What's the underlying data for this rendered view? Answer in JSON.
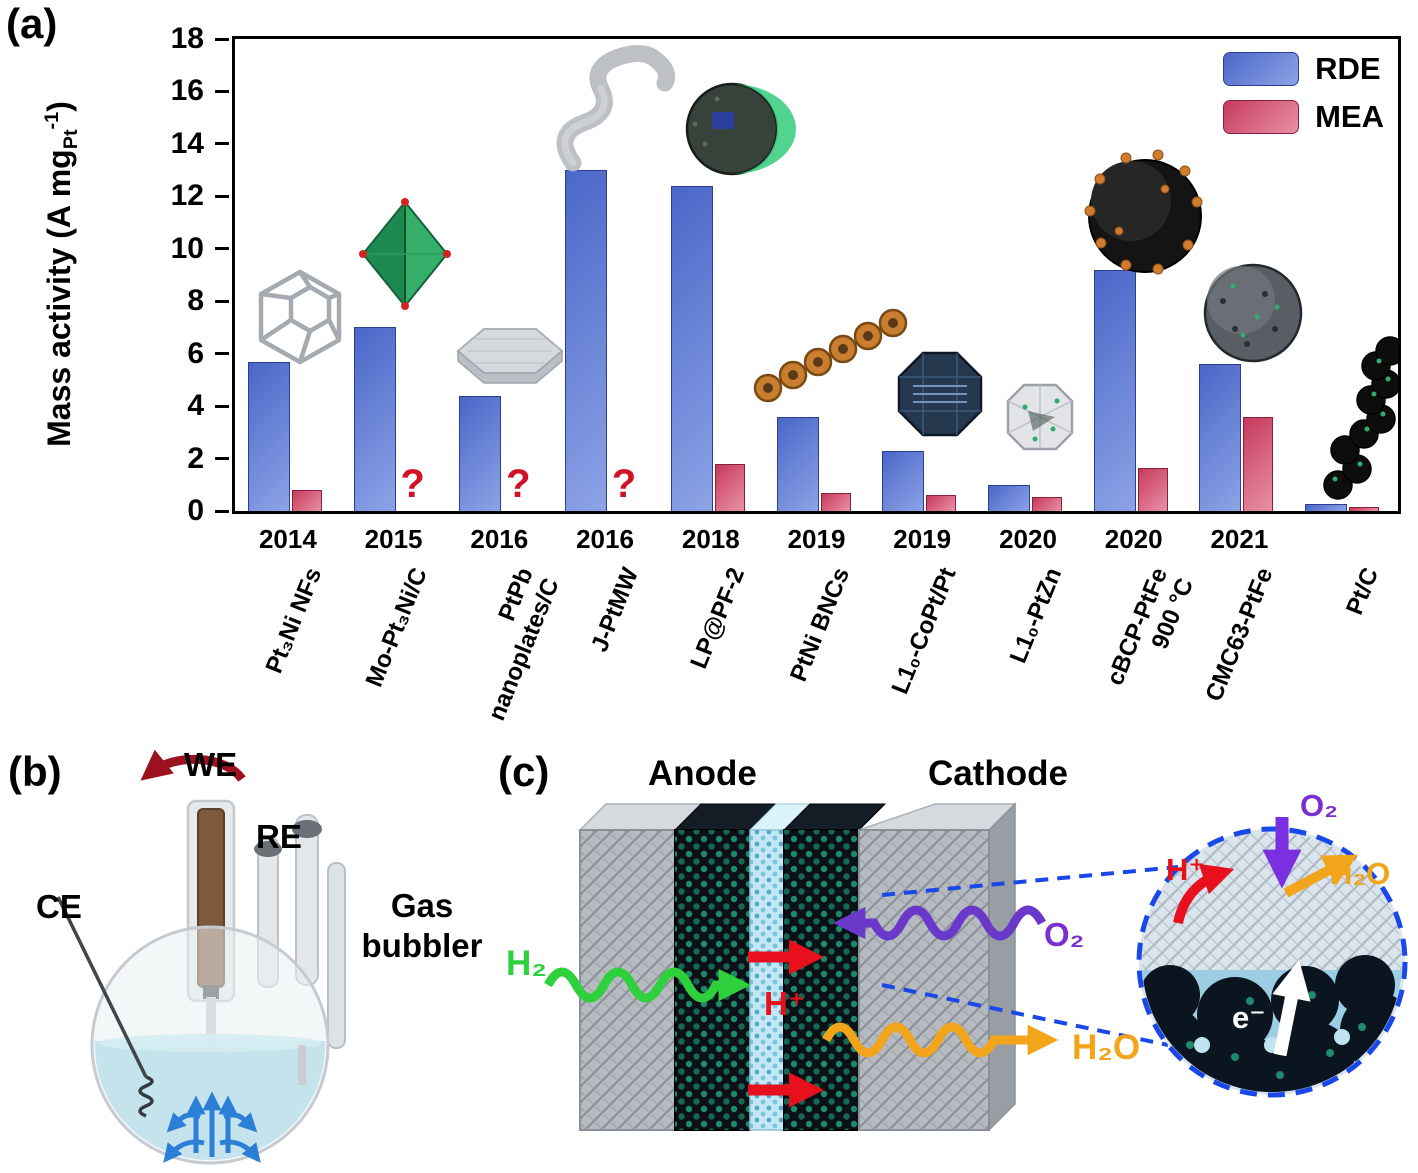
{
  "panels": {
    "a": "(a)",
    "b": "(b)",
    "c": "(c)"
  },
  "chart_data": {
    "type": "bar",
    "title": "",
    "ylabel": "Mass activity (A mg_Pt^-1)",
    "ylabel_parts": {
      "prefix": "Mass activity (A mg",
      "sub": "Pt",
      "sup": "-1",
      "suffix": ")"
    },
    "ylim": [
      0,
      18
    ],
    "y_ticks": [
      0,
      2,
      4,
      6,
      8,
      10,
      12,
      14,
      16,
      18
    ],
    "grid": false,
    "legend_position": "top-right",
    "missing_marker": "?",
    "missing_color": "#d01126",
    "categories": [
      {
        "year": "2014",
        "name": "Pt₃Ni NFs"
      },
      {
        "year": "2015",
        "name": "Mo-Pt₃Ni/C"
      },
      {
        "year": "2016",
        "name": "PtPb\nnanoplates/C"
      },
      {
        "year": "2016",
        "name": "J-PtMW"
      },
      {
        "year": "2018",
        "name": "LP@PF-2"
      },
      {
        "year": "2019",
        "name": "PtNi BNCs"
      },
      {
        "year": "2019",
        "name": "L1₀-CoPt/Pt"
      },
      {
        "year": "2020",
        "name": "L1₀-PtZn"
      },
      {
        "year": "2020",
        "name": "cBCP-PtFe\n900 °C"
      },
      {
        "year": "2021",
        "name": "CMC63-PtFe"
      },
      {
        "year": "",
        "name": "Pt/C"
      }
    ],
    "series": [
      {
        "name": "RDE",
        "color": "#4a67c8",
        "color_light": "#8ca3e6",
        "color_dark": "#2c3f8f",
        "values": [
          5.7,
          7.0,
          4.4,
          13.0,
          12.4,
          3.6,
          2.3,
          1.0,
          9.2,
          5.6,
          0.25
        ]
      },
      {
        "name": "MEA",
        "color": "#c73a5c",
        "color_light": "#e891a6",
        "color_dark": "#8a1f3c",
        "values": [
          0.8,
          null,
          null,
          null,
          1.8,
          0.7,
          0.6,
          0.55,
          1.65,
          3.6,
          0.15
        ]
      }
    ]
  },
  "panel_b": {
    "we_label": "WE",
    "re_label": "RE",
    "ce_label": "CE",
    "gas_bubbler_label": "Gas\nbubbler"
  },
  "panel_c": {
    "anode_label": "Anode",
    "cathode_label": "Cathode",
    "h2_label": "H₂",
    "h_plus_label": "H⁺",
    "o2_label": "O₂",
    "h2o_label": "H₂O",
    "zoom": {
      "o2_label": "O₂",
      "h_plus_label": "H⁺",
      "h2o_label": "H₂O",
      "electron_label": "e⁻"
    },
    "colors": {
      "h2": "#2ed13c",
      "h_plus": "#e8101c",
      "o2": "#7a2fd0",
      "h2o": "#f2a41a",
      "electron": "#ffffff"
    }
  }
}
